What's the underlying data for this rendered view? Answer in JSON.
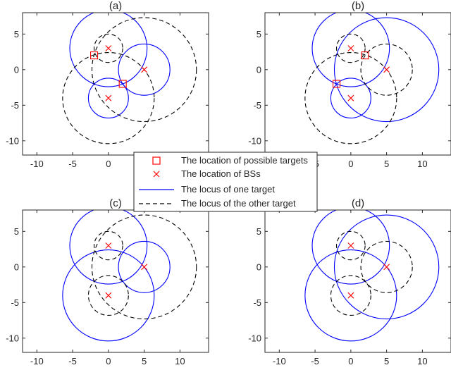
{
  "chart_data": [
    {
      "type": "scatter",
      "title": "(a)",
      "xlim": [
        -12,
        14
      ],
      "ylim": [
        -12,
        8
      ],
      "xticks": [
        -10,
        -5,
        0,
        5,
        10
      ],
      "yticks": [
        5,
        0,
        -5,
        -10
      ],
      "show_xtick_labels": true,
      "bs": [
        [
          0,
          3
        ],
        [
          5,
          0
        ],
        [
          0,
          -4
        ]
      ],
      "targets": [
        [
          -2,
          2
        ],
        [
          2,
          -2
        ]
      ],
      "circles": [
        {
          "cx": 0,
          "cy": 3,
          "r": 5.4,
          "style": "solid"
        },
        {
          "cx": 5,
          "cy": 0,
          "r": 3.6,
          "style": "solid"
        },
        {
          "cx": 0,
          "cy": -4,
          "r": 2.8,
          "style": "solid"
        },
        {
          "cx": 0,
          "cy": 3,
          "r": 2.0,
          "style": "dashed"
        },
        {
          "cx": 5,
          "cy": 0,
          "r": 7.3,
          "style": "dashed"
        },
        {
          "cx": 0,
          "cy": -4,
          "r": 6.4,
          "style": "dashed"
        }
      ]
    },
    {
      "type": "scatter",
      "title": "(b)",
      "xlim": [
        -12,
        14
      ],
      "ylim": [
        -12,
        8
      ],
      "xticks": [
        -10,
        -5,
        0,
        5,
        10
      ],
      "yticks": [
        5,
        0,
        -5,
        -10
      ],
      "show_xtick_labels": true,
      "bs": [
        [
          0,
          3
        ],
        [
          5,
          0
        ],
        [
          0,
          -4
        ]
      ],
      "targets": [
        [
          2,
          2
        ],
        [
          -2,
          -2
        ]
      ],
      "circles": [
        {
          "cx": 0,
          "cy": 3,
          "r": 5.4,
          "style": "solid"
        },
        {
          "cx": 5,
          "cy": 0,
          "r": 7.3,
          "style": "solid"
        },
        {
          "cx": 0,
          "cy": -4,
          "r": 2.8,
          "style": "solid"
        },
        {
          "cx": 0,
          "cy": 3,
          "r": 2.0,
          "style": "dashed"
        },
        {
          "cx": 5,
          "cy": 0,
          "r": 3.6,
          "style": "dashed"
        },
        {
          "cx": 0,
          "cy": -4,
          "r": 6.4,
          "style": "dashed"
        }
      ]
    },
    {
      "type": "scatter",
      "title": "(c)",
      "xlim": [
        -12,
        14
      ],
      "ylim": [
        -12,
        8
      ],
      "xticks": [
        -10,
        -5,
        0,
        5,
        10
      ],
      "yticks": [
        5,
        0,
        -5,
        -10
      ],
      "show_xtick_labels": true,
      "bs": [
        [
          0,
          3
        ],
        [
          5,
          0
        ],
        [
          0,
          -4
        ]
      ],
      "targets": [],
      "circles": [
        {
          "cx": 0,
          "cy": 3,
          "r": 5.4,
          "style": "solid"
        },
        {
          "cx": 5,
          "cy": 0,
          "r": 3.6,
          "style": "solid"
        },
        {
          "cx": 0,
          "cy": -4,
          "r": 6.4,
          "style": "solid"
        },
        {
          "cx": 0,
          "cy": 3,
          "r": 2.0,
          "style": "dashed"
        },
        {
          "cx": 5,
          "cy": 0,
          "r": 7.3,
          "style": "dashed"
        },
        {
          "cx": 0,
          "cy": -4,
          "r": 2.8,
          "style": "dashed"
        }
      ]
    },
    {
      "type": "scatter",
      "title": "(d)",
      "xlim": [
        -12,
        14
      ],
      "ylim": [
        -12,
        8
      ],
      "xticks": [
        -10,
        -5,
        0,
        5,
        10
      ],
      "yticks": [
        5,
        0,
        -5,
        -10
      ],
      "show_xtick_labels": true,
      "bs": [
        [
          0,
          3
        ],
        [
          5,
          0
        ],
        [
          0,
          -4
        ]
      ],
      "targets": [],
      "circles": [
        {
          "cx": 0,
          "cy": 3,
          "r": 5.4,
          "style": "solid"
        },
        {
          "cx": 5,
          "cy": 0,
          "r": 7.3,
          "style": "solid"
        },
        {
          "cx": 0,
          "cy": -4,
          "r": 6.4,
          "style": "solid"
        },
        {
          "cx": 0,
          "cy": 3,
          "r": 2.0,
          "style": "dashed"
        },
        {
          "cx": 5,
          "cy": 0,
          "r": 3.6,
          "style": "dashed"
        },
        {
          "cx": 0,
          "cy": -4,
          "r": 2.8,
          "style": "dashed"
        }
      ]
    }
  ],
  "legend": [
    {
      "label": "The location of possible targets",
      "marker": "square"
    },
    {
      "label": "The location of BSs",
      "marker": "cross"
    },
    {
      "label": "The locus of one target",
      "marker": "solid-line"
    },
    {
      "label": "The locus of the other target",
      "marker": "dashed-line"
    }
  ],
  "colors": {
    "solid": "#0000ff",
    "dashed": "#000000",
    "marker": "#ff0000",
    "axis": "#262626"
  }
}
